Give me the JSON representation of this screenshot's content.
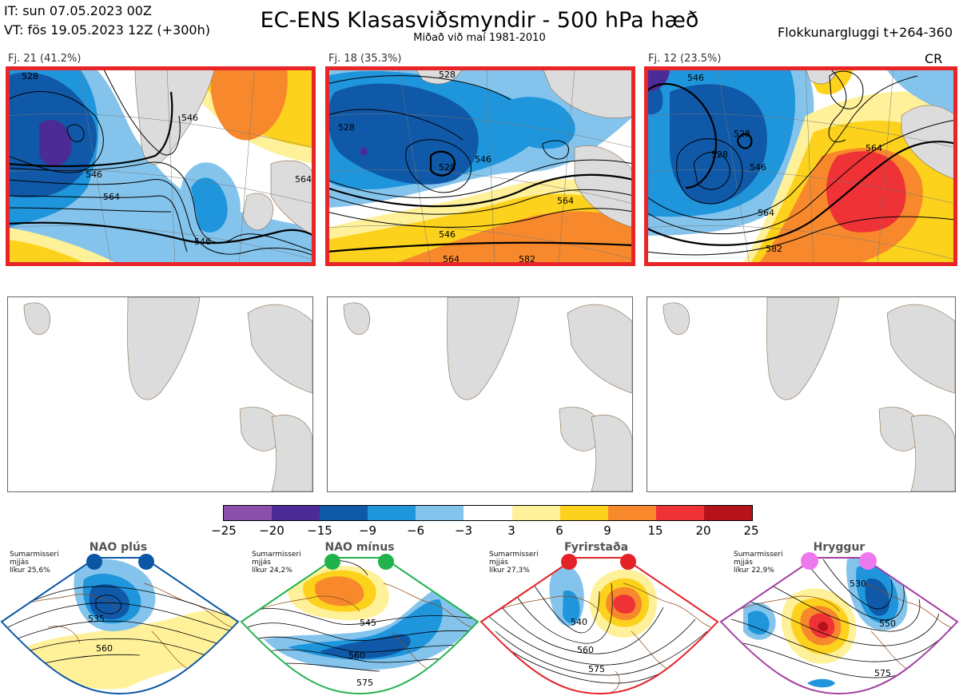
{
  "header": {
    "it_line": "IT: sun 07.05.2023 00Z",
    "vt_line": "VT: fös 19.05.2023 12Z  (+300h)",
    "title": "EC-ENS Klasasviðsmyndir - 500 hPa hæð",
    "subtitle": "Miðað við maí 1981-2010",
    "window": "Flokkunargluggi t+264-360",
    "cr": "CR"
  },
  "clusters": [
    {
      "label": "Fj. 21 (41.2%)",
      "contours": [
        "528",
        "546",
        "564",
        "546",
        "546",
        "564"
      ]
    },
    {
      "label": "Fj. 18 (35.3%)",
      "contours": [
        "528",
        "528",
        "528",
        "546",
        "564",
        "546",
        "564",
        "582"
      ]
    },
    {
      "label": "Fj. 12 (23.5%)",
      "contours": [
        "546",
        "528",
        "528",
        "546",
        "564",
        "564",
        "582"
      ]
    }
  ],
  "colorbar": {
    "ticks": [
      "−25",
      "−20",
      "−15",
      "−9",
      "−6",
      "−3",
      "3",
      "6",
      "9",
      "15",
      "20",
      "25"
    ],
    "colors": [
      "#8a4fa8",
      "#4b2c96",
      "#0f59a8",
      "#1f95dc",
      "#84c4ec",
      "#ffffff",
      "#fff19a",
      "#fcd21c",
      "#f7892c",
      "#ee3236",
      "#b5121b"
    ]
  },
  "regimes": [
    {
      "name": "NAO plús",
      "season": "Sumarmisseri",
      "mean": "mjjás",
      "prob": "líkur 25,6%",
      "color": "#0b57a6",
      "contours": [
        "535",
        "560"
      ]
    },
    {
      "name": "NAO mínus",
      "season": "Sumarmisseri",
      "mean": "mjjás",
      "prob": "líkur 24,2%",
      "color": "#22b24c",
      "contours": [
        "545",
        "560",
        "575"
      ]
    },
    {
      "name": "Fyrirstaða",
      "season": "Sumarmisseri",
      "mean": "mjjás",
      "prob": "líkur 27,3%",
      "color": "#e52228",
      "contours": [
        "540",
        "560",
        "575"
      ]
    },
    {
      "name": "Hryggur",
      "season": "Sumarmisseri",
      "mean": "mjjás",
      "prob": "líkur 22,9%",
      "color": "#ee78ee",
      "contours": [
        "530",
        "550",
        "575"
      ]
    }
  ]
}
